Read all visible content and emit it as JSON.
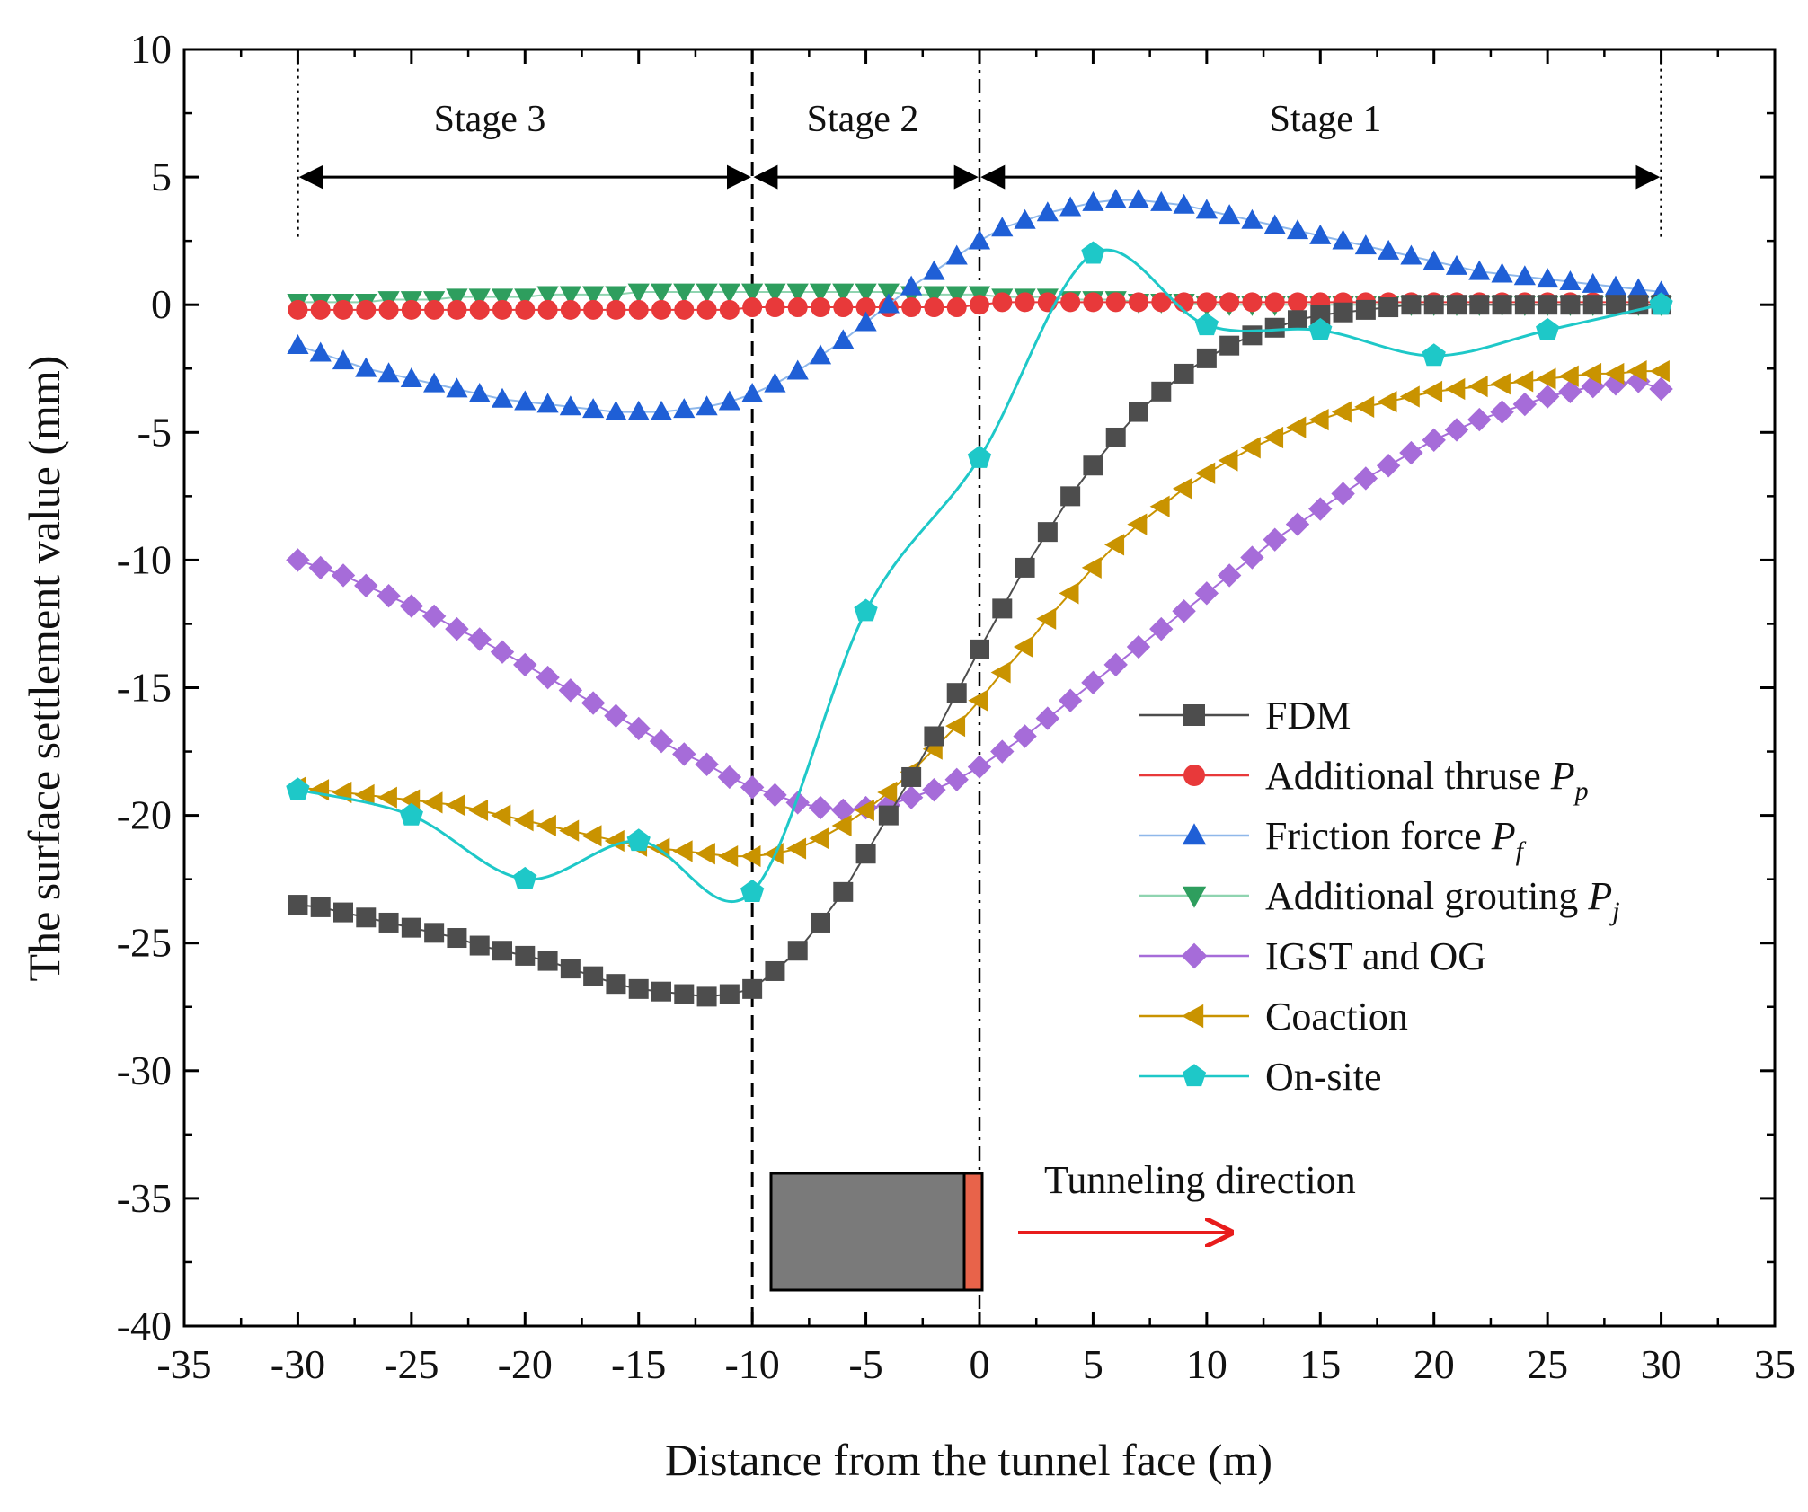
{
  "chart_data": {
    "type": "line",
    "title": "",
    "xlabel": "Distance from the tunnel face (m)",
    "ylabel": "The surface settlement value (mm)",
    "xlim": [
      -35,
      35
    ],
    "ylim": [
      -40,
      10
    ],
    "x_ticks": [
      -35,
      -30,
      -25,
      -20,
      -15,
      -10,
      -5,
      0,
      5,
      10,
      15,
      20,
      25,
      30,
      35
    ],
    "y_ticks": [
      -40,
      -35,
      -30,
      -25,
      -20,
      -15,
      -10,
      -5,
      0,
      5,
      10
    ],
    "grid": false,
    "legend_position": "lower-right",
    "stages": [
      {
        "label": "Stage 3",
        "from": -30,
        "to": -10
      },
      {
        "label": "Stage 2",
        "from": -10,
        "to": 0
      },
      {
        "label": "Stage 1",
        "from": 0,
        "to": 30
      }
    ],
    "annotation": "Tunneling direction",
    "series": [
      {
        "name": "FDM",
        "sub": "",
        "marker": "square",
        "color": "#4d4d4d",
        "line": "#4d4d4d",
        "x": [
          -30,
          -29,
          -28,
          -27,
          -26,
          -25,
          -24,
          -23,
          -22,
          -21,
          -20,
          -19,
          -18,
          -17,
          -16,
          -15,
          -14,
          -13,
          -12,
          -11,
          -10,
          -9,
          -8,
          -7,
          -6,
          -5,
          -4,
          -3,
          -2,
          -1,
          0,
          1,
          2,
          3,
          4,
          5,
          6,
          7,
          8,
          9,
          10,
          11,
          12,
          13,
          14,
          15,
          16,
          17,
          18,
          19,
          20,
          21,
          22,
          23,
          24,
          25,
          26,
          27,
          28,
          29,
          30
        ],
        "y": [
          -23.5,
          -23.6,
          -23.8,
          -24.0,
          -24.2,
          -24.4,
          -24.6,
          -24.8,
          -25.1,
          -25.3,
          -25.5,
          -25.7,
          -26.0,
          -26.3,
          -26.6,
          -26.8,
          -26.9,
          -27.0,
          -27.1,
          -27.0,
          -26.8,
          -26.1,
          -25.3,
          -24.2,
          -23.0,
          -21.5,
          -20.0,
          -18.5,
          -16.9,
          -15.2,
          -13.5,
          -11.9,
          -10.3,
          -8.9,
          -7.5,
          -6.3,
          -5.2,
          -4.2,
          -3.4,
          -2.7,
          -2.1,
          -1.6,
          -1.2,
          -0.9,
          -0.6,
          -0.4,
          -0.3,
          -0.2,
          -0.1,
          0.0,
          0.0,
          0.0,
          0.0,
          0.0,
          0.0,
          0.0,
          0.0,
          0.0,
          0.0,
          0.0,
          0.0
        ]
      },
      {
        "name": "Additional thruse ",
        "sub": "p",
        "marker": "circle",
        "color": "#e8393a",
        "line": "#e8393a",
        "x": [
          -30,
          -29,
          -28,
          -27,
          -26,
          -25,
          -24,
          -23,
          -22,
          -21,
          -20,
          -19,
          -18,
          -17,
          -16,
          -15,
          -14,
          -13,
          -12,
          -11,
          -10,
          -9,
          -8,
          -7,
          -6,
          -5,
          -4,
          -3,
          -2,
          -1,
          0,
          1,
          2,
          3,
          4,
          5,
          6,
          7,
          8,
          9,
          10,
          11,
          12,
          13,
          14,
          15,
          16,
          17,
          18,
          19,
          20,
          21,
          22,
          23,
          24,
          25,
          26,
          27,
          28,
          29,
          30
        ],
        "y": [
          -0.2,
          -0.2,
          -0.2,
          -0.2,
          -0.2,
          -0.2,
          -0.2,
          -0.2,
          -0.2,
          -0.2,
          -0.2,
          -0.2,
          -0.2,
          -0.2,
          -0.2,
          -0.2,
          -0.2,
          -0.2,
          -0.2,
          -0.2,
          -0.1,
          -0.1,
          -0.1,
          -0.1,
          -0.1,
          -0.1,
          -0.1,
          -0.1,
          -0.1,
          -0.1,
          0.0,
          0.1,
          0.1,
          0.1,
          0.1,
          0.1,
          0.1,
          0.1,
          0.1,
          0.1,
          0.1,
          0.1,
          0.1,
          0.1,
          0.1,
          0.1,
          0.1,
          0.1,
          0.1,
          0.1,
          0.1,
          0.1,
          0.1,
          0.1,
          0.1,
          0.1,
          0.1,
          0.1,
          0.1,
          0.1,
          0.1
        ]
      },
      {
        "name": "Friction force ",
        "sub": "f",
        "marker": "triangle-up",
        "color": "#1f5fd6",
        "line": "#8fb8ea",
        "x": [
          -30,
          -29,
          -28,
          -27,
          -26,
          -25,
          -24,
          -23,
          -22,
          -21,
          -20,
          -19,
          -18,
          -17,
          -16,
          -15,
          -14,
          -13,
          -12,
          -11,
          -10,
          -9,
          -8,
          -7,
          -6,
          -5,
          -4,
          -3,
          -2,
          -1,
          0,
          1,
          2,
          3,
          4,
          5,
          6,
          7,
          8,
          9,
          10,
          11,
          12,
          13,
          14,
          15,
          16,
          17,
          18,
          19,
          20,
          21,
          22,
          23,
          24,
          25,
          26,
          27,
          28,
          29,
          30
        ],
        "y": [
          -1.6,
          -1.9,
          -2.2,
          -2.5,
          -2.7,
          -2.9,
          -3.1,
          -3.3,
          -3.5,
          -3.7,
          -3.8,
          -3.9,
          -4.0,
          -4.1,
          -4.2,
          -4.2,
          -4.2,
          -4.1,
          -4.0,
          -3.8,
          -3.5,
          -3.1,
          -2.6,
          -2.0,
          -1.4,
          -0.7,
          0.0,
          0.7,
          1.3,
          1.9,
          2.5,
          3.0,
          3.3,
          3.6,
          3.8,
          4.0,
          4.1,
          4.1,
          4.0,
          3.9,
          3.7,
          3.5,
          3.3,
          3.1,
          2.9,
          2.7,
          2.5,
          2.3,
          2.1,
          1.9,
          1.7,
          1.5,
          1.3,
          1.2,
          1.1,
          1.0,
          0.9,
          0.8,
          0.7,
          0.6,
          0.5
        ]
      },
      {
        "name": "Additional grouting ",
        "sub": "j",
        "marker": "triangle-down",
        "color": "#2e9e5e",
        "line": "#8fd4b0",
        "x": [
          -30,
          -29,
          -28,
          -27,
          -26,
          -25,
          -24,
          -23,
          -22,
          -21,
          -20,
          -19,
          -18,
          -17,
          -16,
          -15,
          -14,
          -13,
          -12,
          -11,
          -10,
          -9,
          -8,
          -7,
          -6,
          -5,
          -4,
          -3,
          -2,
          -1,
          0,
          1,
          2,
          3,
          4,
          5,
          6,
          7,
          8,
          9,
          10,
          11,
          12,
          13,
          14,
          15,
          16,
          17,
          18,
          19,
          20,
          21,
          22,
          23,
          24,
          25,
          26,
          27,
          28,
          29,
          30
        ],
        "y": [
          0.1,
          0.1,
          0.1,
          0.1,
          0.2,
          0.2,
          0.2,
          0.3,
          0.3,
          0.3,
          0.3,
          0.4,
          0.4,
          0.4,
          0.4,
          0.5,
          0.5,
          0.5,
          0.5,
          0.5,
          0.5,
          0.5,
          0.5,
          0.5,
          0.5,
          0.5,
          0.5,
          0.4,
          0.4,
          0.4,
          0.4,
          0.3,
          0.3,
          0.3,
          0.2,
          0.2,
          0.2,
          0.1,
          0.1,
          0.1,
          0.0,
          0.0,
          0.0,
          0.0,
          0.0,
          0.0,
          0.0,
          0.0,
          0.0,
          0.0,
          0.0,
          0.0,
          0.0,
          0.0,
          0.0,
          0.0,
          0.0,
          0.0,
          0.0,
          0.0,
          0.0
        ]
      },
      {
        "name": "IGST and OG",
        "sub": "",
        "marker": "diamond",
        "color": "#a66cd9",
        "line": "#a66cd9",
        "x": [
          -30,
          -29,
          -28,
          -27,
          -26,
          -25,
          -24,
          -23,
          -22,
          -21,
          -20,
          -19,
          -18,
          -17,
          -16,
          -15,
          -14,
          -13,
          -12,
          -11,
          -10,
          -9,
          -8,
          -7,
          -6,
          -5,
          -4,
          -3,
          -2,
          -1,
          0,
          1,
          2,
          3,
          4,
          5,
          6,
          7,
          8,
          9,
          10,
          11,
          12,
          13,
          14,
          15,
          16,
          17,
          18,
          19,
          20,
          21,
          22,
          23,
          24,
          25,
          26,
          27,
          28,
          29,
          30
        ],
        "y": [
          -10.0,
          -10.3,
          -10.6,
          -11.0,
          -11.4,
          -11.8,
          -12.2,
          -12.7,
          -13.1,
          -13.6,
          -14.1,
          -14.6,
          -15.1,
          -15.6,
          -16.1,
          -16.6,
          -17.1,
          -17.6,
          -18.0,
          -18.5,
          -18.9,
          -19.2,
          -19.5,
          -19.7,
          -19.8,
          -19.7,
          -19.6,
          -19.3,
          -19.0,
          -18.6,
          -18.1,
          -17.5,
          -16.9,
          -16.2,
          -15.5,
          -14.8,
          -14.1,
          -13.4,
          -12.7,
          -12.0,
          -11.3,
          -10.6,
          -9.9,
          -9.2,
          -8.6,
          -8.0,
          -7.4,
          -6.8,
          -6.3,
          -5.8,
          -5.3,
          -4.9,
          -4.5,
          -4.2,
          -3.9,
          -3.6,
          -3.4,
          -3.2,
          -3.1,
          -3.0,
          -3.3
        ]
      },
      {
        "name": "Coaction",
        "sub": "",
        "marker": "triangle-left",
        "color": "#c99300",
        "line": "#c99300",
        "x": [
          -30,
          -29,
          -28,
          -27,
          -26,
          -25,
          -24,
          -23,
          -22,
          -21,
          -20,
          -19,
          -18,
          -17,
          -16,
          -15,
          -14,
          -13,
          -12,
          -11,
          -10,
          -9,
          -8,
          -7,
          -6,
          -5,
          -4,
          -3,
          -2,
          -1,
          0,
          1,
          2,
          3,
          4,
          5,
          6,
          7,
          8,
          9,
          10,
          11,
          12,
          13,
          14,
          15,
          16,
          17,
          18,
          19,
          20,
          21,
          22,
          23,
          24,
          25,
          26,
          27,
          28,
          29,
          30
        ],
        "y": [
          -18.9,
          -19.0,
          -19.1,
          -19.2,
          -19.3,
          -19.4,
          -19.5,
          -19.6,
          -19.8,
          -20.0,
          -20.2,
          -20.4,
          -20.6,
          -20.8,
          -21.0,
          -21.2,
          -21.3,
          -21.4,
          -21.5,
          -21.6,
          -21.6,
          -21.5,
          -21.3,
          -20.9,
          -20.4,
          -19.8,
          -19.1,
          -18.3,
          -17.4,
          -16.5,
          -15.5,
          -14.4,
          -13.4,
          -12.3,
          -11.3,
          -10.3,
          -9.4,
          -8.6,
          -7.9,
          -7.2,
          -6.6,
          -6.1,
          -5.6,
          -5.2,
          -4.8,
          -4.5,
          -4.2,
          -4.0,
          -3.8,
          -3.6,
          -3.4,
          -3.3,
          -3.2,
          -3.1,
          -3.0,
          -2.9,
          -2.8,
          -2.7,
          -2.7,
          -2.6,
          -2.6
        ]
      },
      {
        "name": "On-site",
        "sub": "",
        "marker": "pentagon",
        "color": "#1ec8c8",
        "line": "#1ec8c8",
        "x": [
          -30,
          -25,
          -20,
          -15,
          -10,
          -5,
          0,
          5,
          10,
          15,
          20,
          25,
          30
        ],
        "y": [
          -19.0,
          -20.0,
          -22.5,
          -21.0,
          -23.0,
          -12.0,
          -6.0,
          2.0,
          -0.8,
          -1.0,
          -2.0,
          -1.0,
          0.0
        ]
      }
    ]
  }
}
